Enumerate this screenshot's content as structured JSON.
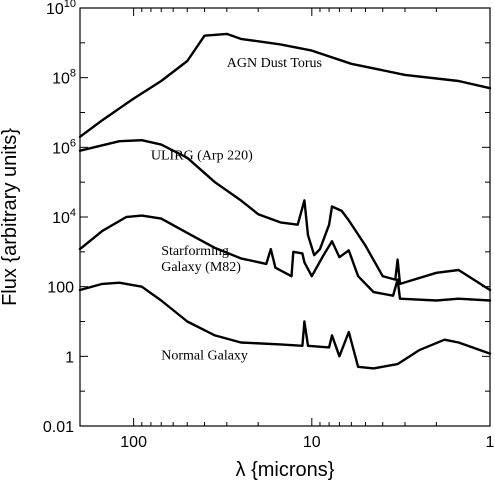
{
  "chart_data": {
    "type": "line",
    "title": "",
    "xlabel": "λ {microns}",
    "ylabel": "Flux {arbitrary units}",
    "xscale": "log",
    "yscale": "log",
    "x_direction": "decreasing",
    "xlim": [
      200,
      1
    ],
    "ylim": [
      0.01,
      10000000000
    ],
    "grid": false,
    "x_ticks": [
      {
        "value": 100,
        "label": "100"
      },
      {
        "value": 10,
        "label": "10"
      },
      {
        "value": 1,
        "label": "1"
      }
    ],
    "y_ticks": [
      {
        "value": 0.01,
        "label": "0.01"
      },
      {
        "value": 1,
        "label": "1"
      },
      {
        "value": 100,
        "label": "100"
      },
      {
        "value": 10000,
        "label": "10",
        "exponent": "4"
      },
      {
        "value": 1000000,
        "label": "10",
        "exponent": "6"
      },
      {
        "value": 100000000,
        "label": "10",
        "exponent": "8"
      },
      {
        "value": 10000000000,
        "label": "10",
        "exponent": "10"
      }
    ],
    "series": [
      {
        "name": "AGN Dust Torus",
        "label_at": [
          30,
          200000000
        ],
        "points": [
          [
            200,
            2000000
          ],
          [
            150,
            6000000
          ],
          [
            100,
            25000000
          ],
          [
            70,
            80000000
          ],
          [
            50,
            300000000
          ],
          [
            40,
            1600000000
          ],
          [
            30,
            1800000000
          ],
          [
            25,
            1300000000
          ],
          [
            15,
            900000000
          ],
          [
            10,
            600000000
          ],
          [
            6,
            250000000
          ],
          [
            3,
            120000000
          ],
          [
            1.5,
            80000000
          ],
          [
            1,
            50000000
          ]
        ]
      },
      {
        "name": "ULIRG (Arp 220)",
        "label_at": [
          80,
          450000
        ],
        "points": [
          [
            200,
            800000
          ],
          [
            120,
            1500000
          ],
          [
            90,
            1600000
          ],
          [
            70,
            1200000
          ],
          [
            50,
            500000
          ],
          [
            35,
            100000
          ],
          [
            25,
            30000
          ],
          [
            20,
            12000
          ],
          [
            15,
            7000
          ],
          [
            12,
            6000
          ],
          [
            11,
            30000
          ],
          [
            10.5,
            3000
          ],
          [
            9.7,
            800
          ],
          [
            9,
            1200
          ],
          [
            8,
            6000
          ],
          [
            7.7,
            20000
          ],
          [
            6.8,
            15000
          ],
          [
            6.2,
            8000
          ],
          [
            5,
            1500
          ],
          [
            4,
            200
          ],
          [
            3.4,
            160
          ],
          [
            3.3,
            600
          ],
          [
            3.2,
            120
          ],
          [
            2,
            250
          ],
          [
            1.5,
            300
          ],
          [
            1,
            80
          ]
        ]
      },
      {
        "name": "Starforming",
        "label_at": [
          70,
          800
        ],
        "points": [
          [
            200,
            1200
          ],
          [
            150,
            4000
          ],
          [
            110,
            10000
          ],
          [
            90,
            11000
          ],
          [
            70,
            9000
          ],
          [
            50,
            3500
          ],
          [
            35,
            1300
          ],
          [
            25,
            650
          ],
          [
            18,
            450
          ],
          [
            17,
            1200
          ],
          [
            16,
            350
          ],
          [
            13,
            200
          ],
          [
            12.7,
            1000
          ],
          [
            11.3,
            900
          ],
          [
            11,
            500
          ],
          [
            10,
            200
          ],
          [
            8.6,
            800
          ],
          [
            7.7,
            2000
          ],
          [
            7,
            700
          ],
          [
            6.2,
            1100
          ],
          [
            5.5,
            200
          ],
          [
            4.5,
            70
          ],
          [
            3.5,
            55
          ],
          [
            3.3,
            160
          ],
          [
            3.2,
            45
          ],
          [
            2,
            40
          ],
          [
            1.5,
            45
          ],
          [
            1,
            40
          ]
        ]
      },
      {
        "name": "Galaxy (M82)",
        "label_at": [
          70,
          280
        ],
        "points": []
      },
      {
        "name": "Normal  Galaxy",
        "label_at": [
          70,
          0.8
        ],
        "points": [
          [
            200,
            80
          ],
          [
            150,
            120
          ],
          [
            120,
            130
          ],
          [
            90,
            100
          ],
          [
            70,
            40
          ],
          [
            50,
            10
          ],
          [
            35,
            4
          ],
          [
            25,
            2.5
          ],
          [
            15,
            2.2
          ],
          [
            11.3,
            2
          ],
          [
            11,
            10
          ],
          [
            10.5,
            2
          ],
          [
            8,
            1.8
          ],
          [
            7.7,
            4
          ],
          [
            7,
            1
          ],
          [
            6.2,
            5
          ],
          [
            5.5,
            0.5
          ],
          [
            4.5,
            0.45
          ],
          [
            3.3,
            0.6
          ],
          [
            2.5,
            1.5
          ],
          [
            1.8,
            3
          ],
          [
            1.5,
            2.5
          ],
          [
            1,
            1.2
          ]
        ]
      }
    ]
  }
}
